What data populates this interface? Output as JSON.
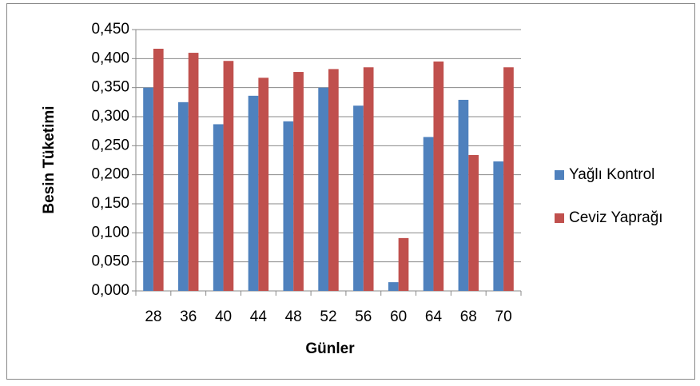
{
  "chart_data": {
    "type": "bar",
    "y_label": "Besin Tüketimi",
    "x_label": "Günler",
    "categories": [
      "28",
      "36",
      "40",
      "44",
      "48",
      "52",
      "56",
      "60",
      "64",
      "68",
      "70"
    ],
    "series": [
      {
        "name": "Yağlı Kontrol",
        "color": "#4f81bd",
        "values": [
          0.35,
          0.325,
          0.287,
          0.336,
          0.292,
          0.35,
          0.319,
          0.015,
          0.265,
          0.329,
          0.223
        ]
      },
      {
        "name": "Ceviz Yaprağı",
        "color": "#c0504d",
        "values": [
          0.417,
          0.41,
          0.396,
          0.367,
          0.377,
          0.382,
          0.385,
          0.091,
          0.395,
          0.234,
          0.385
        ]
      }
    ],
    "ylim": [
      0,
      0.45
    ],
    "yticks": [
      {
        "value": 0,
        "label": "0,000"
      },
      {
        "value": 0.05,
        "label": "0,050"
      },
      {
        "value": 0.1,
        "label": "0,100"
      },
      {
        "value": 0.15,
        "label": "0,150"
      },
      {
        "value": 0.2,
        "label": "0,200"
      },
      {
        "value": 0.25,
        "label": "0,250"
      },
      {
        "value": 0.3,
        "label": "0,300"
      },
      {
        "value": 0.35,
        "label": "0,350"
      },
      {
        "value": 0.4,
        "label": "0,400"
      },
      {
        "value": 0.45,
        "label": "0,450"
      }
    ],
    "grid": true,
    "legend": "right"
  }
}
